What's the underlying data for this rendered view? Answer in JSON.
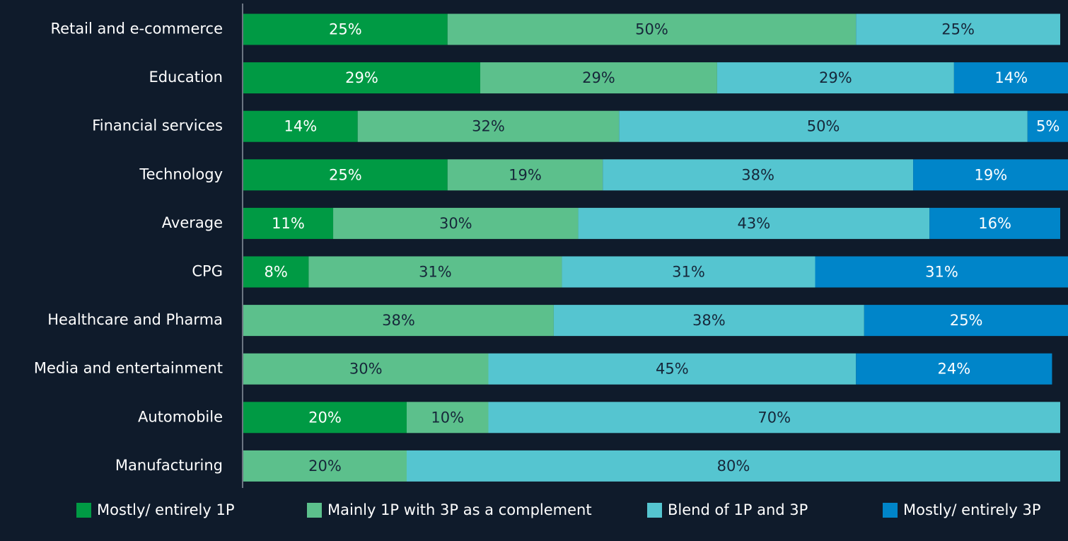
{
  "chart_data": {
    "type": "stacked-bar-horizontal",
    "categories": [
      "Retail and e-commerce",
      "Education",
      "Financial services",
      "Technology",
      "Average",
      "CPG",
      "Healthcare and Pharma",
      "Media and entertainment",
      "Automobile",
      "Manufacturing"
    ],
    "series": [
      {
        "name": "Mostly/ entirely 1P",
        "color": "#009a44",
        "values": [
          25,
          29,
          14,
          25,
          11,
          8,
          null,
          null,
          20,
          null
        ],
        "value_labels": [
          "25%",
          "29%",
          "14%",
          "25%",
          "11%",
          "8%",
          null,
          null,
          "20%",
          null
        ]
      },
      {
        "name": "Mainly 1P with 3P as a complement",
        "color": "#5cc08c",
        "values": [
          50,
          29,
          32,
          19,
          30,
          31,
          38,
          30,
          10,
          20
        ],
        "value_labels": [
          "50%",
          "29%",
          "32%",
          "19%",
          "30%",
          "31%",
          "38%",
          "30%",
          "10%",
          "20%"
        ]
      },
      {
        "name": "Blend of 1P and 3P",
        "color": "#55c5d0",
        "values": [
          25,
          29,
          50,
          38,
          43,
          31,
          38,
          45,
          70,
          80
        ],
        "value_labels": [
          "25%",
          "29%",
          "50%",
          "38%",
          "43%",
          "31%",
          "38%",
          "45%",
          "70%",
          "80%"
        ]
      },
      {
        "name": "Mostly/ entirely 3P",
        "color": "#0085c9",
        "values": [
          null,
          14,
          5,
          19,
          16,
          31,
          25,
          24,
          null,
          null
        ],
        "value_labels": [
          null,
          "14%",
          "5%",
          "19%",
          "16%",
          "31%",
          "25%",
          "24%",
          null,
          null
        ]
      }
    ],
    "xlim": [
      0,
      100
    ],
    "legend": "bottom"
  }
}
